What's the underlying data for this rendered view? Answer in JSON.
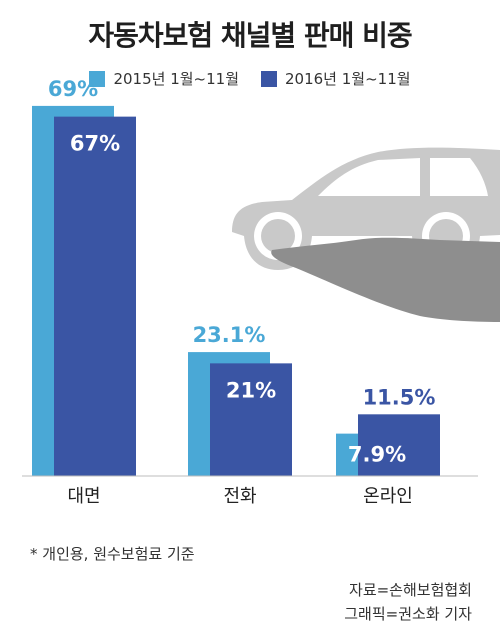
{
  "colors": {
    "series_2015": "#4aa8d6",
    "series_2016": "#3a55a4",
    "car": "#c9c9c9",
    "hand": "#8e8e8e"
  },
  "legend": {
    "item_2015": "2015년 1월~11월",
    "item_2016": "2016년 1월~11월"
  },
  "footnote": "* 개인용, 원수보험료 기준",
  "source_line": "자료=손해보험협회",
  "credit_line": "그래픽=권소화 기자",
  "chart_data": {
    "type": "bar",
    "title": "자동차보험 채널별 판매 비중",
    "categories": [
      "대면",
      "전화",
      "온라인"
    ],
    "series": [
      {
        "name": "2015년 1월~11월",
        "values": [
          69,
          23.1,
          7.9
        ],
        "labels": [
          "69%",
          "23.1%",
          "7.9%"
        ]
      },
      {
        "name": "2016년 1월~11월",
        "values": [
          67,
          21,
          11.5
        ],
        "labels": [
          "67%",
          "21%",
          "11.5%"
        ]
      }
    ],
    "ylim": [
      0,
      75
    ],
    "grid": false,
    "legend_position": "top"
  }
}
